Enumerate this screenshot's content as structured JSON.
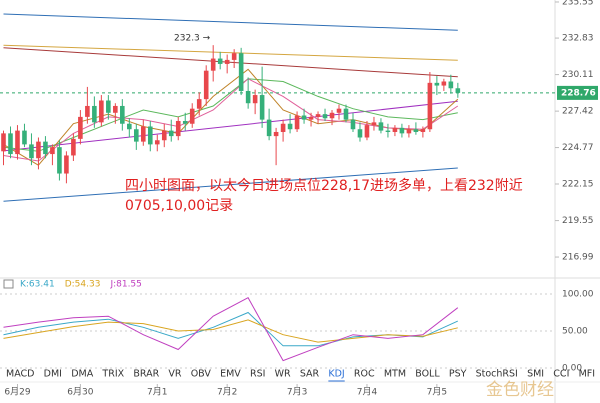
{
  "chart_data": [
    {
      "type": "candlestick",
      "log_scale": true,
      "xlim": [
        -0.5,
        78.9
      ],
      "ylim": [
        215.74,
        235.7
      ],
      "yticks": [
        235.55,
        232.83,
        230.11,
        227.42,
        224.77,
        222.15,
        219.55,
        216.99
      ],
      "xticks": [
        {
          "value": 2,
          "label": "6月29"
        },
        {
          "value": 11,
          "label": "6月30"
        },
        {
          "value": 22,
          "label": "7月1"
        },
        {
          "value": 32,
          "label": "7月2"
        },
        {
          "value": 42,
          "label": "7月3"
        },
        {
          "value": 52,
          "label": "7月4"
        },
        {
          "value": 62,
          "label": "7月5"
        }
      ],
      "up_color": "#e8474c",
      "down_color": "#35b07a",
      "open": [
        224.5,
        225.8,
        224.3,
        226,
        225,
        224,
        225.2,
        224.3,
        224.8,
        222.9,
        224.2,
        225.4,
        227,
        227.8,
        226.6,
        228.2,
        227.3,
        227.8,
        226.5,
        226.1,
        225.2,
        226.3,
        225,
        225.3,
        226,
        225.6,
        226.7,
        226.5,
        227.6,
        228.3,
        230.4,
        231.3,
        230.9,
        231.2,
        231.7,
        228.9,
        228,
        228.6,
        226.8,
        225.6,
        225.9,
        226.5,
        226.1,
        227.1,
        226.8,
        227,
        227.2,
        226.9,
        227.3,
        227.6,
        226.8,
        226.1,
        225.5,
        226.4,
        226.6,
        226,
        225.9,
        226.2,
        225.8,
        226.1,
        225.9,
        226.1,
        229.5,
        229.3,
        229.6,
        229.1
      ],
      "high": [
        226,
        226.3,
        226.4,
        226.5,
        225.8,
        225.5,
        225.6,
        225,
        225.3,
        224.5,
        225.8,
        227.5,
        229.2,
        228.5,
        228.6,
        228.6,
        228,
        228.3,
        226.9,
        226.5,
        226.8,
        226.7,
        225.7,
        226.5,
        226.8,
        227,
        227.3,
        228,
        228.8,
        230.8,
        232.3,
        231.8,
        231.6,
        232,
        232.1,
        229.9,
        229,
        230.7,
        227.6,
        226.2,
        226.8,
        227.2,
        227.4,
        227.6,
        227.3,
        227.4,
        227.6,
        227.5,
        227.9,
        227.9,
        227.3,
        226.6,
        226.7,
        227,
        226.9,
        226.5,
        226.4,
        226.5,
        226.4,
        226.6,
        226.3,
        230.3,
        230,
        229.8,
        230.1,
        229.5
      ],
      "low": [
        223.5,
        224,
        223.9,
        224.8,
        223.5,
        223.2,
        224,
        223.5,
        222.4,
        222.2,
        223.8,
        225,
        226.5,
        226.2,
        226.3,
        226.8,
        226.5,
        226,
        225.5,
        224.6,
        224.9,
        224.5,
        224.5,
        224.8,
        225.2,
        225.3,
        226,
        226.2,
        227.1,
        227.8,
        229.6,
        230.5,
        230.2,
        230.6,
        228.6,
        227.6,
        227.2,
        226.2,
        225.3,
        223.5,
        225.2,
        225.8,
        225.9,
        226.5,
        226.3,
        226.5,
        226.7,
        226.4,
        226.8,
        226.6,
        225.9,
        225.2,
        225.3,
        226,
        225.8,
        225.5,
        225.6,
        225.5,
        225.5,
        225.7,
        225.5,
        225.9,
        228.6,
        228.9,
        228.7,
        228.4
      ],
      "close": [
        225.8,
        224.3,
        226,
        225,
        224,
        225.2,
        224.3,
        224.8,
        222.9,
        224.2,
        225.4,
        227,
        227.8,
        226.6,
        228.2,
        227.3,
        227.8,
        226.5,
        226.1,
        225.2,
        226.3,
        225,
        225.3,
        226,
        225.6,
        226.7,
        226.5,
        227.6,
        228.3,
        230.4,
        231.3,
        230.9,
        231.2,
        231.7,
        228.9,
        228,
        228.6,
        226.8,
        225.6,
        225.9,
        226.5,
        226.1,
        227.1,
        226.8,
        227,
        227.2,
        226.9,
        227.3,
        227.6,
        226.8,
        226.1,
        225.5,
        226.4,
        226.6,
        226,
        225.9,
        226.2,
        225.8,
        226.1,
        225.9,
        226.1,
        229.5,
        229.3,
        229.6,
        229.1,
        228.76
      ],
      "lines": [
        {
          "color": "#2f6fb5",
          "x": [
            0,
            65
          ],
          "values": [
            234.64,
            233.41
          ]
        },
        {
          "color": "#d4a640",
          "x": [
            0,
            65
          ],
          "values": [
            232.3,
            231.17
          ]
        },
        {
          "color": "#a83a3a",
          "x": [
            0,
            65
          ],
          "values": [
            232.1,
            229.95
          ]
        },
        {
          "color": "#a030c0",
          "x": [
            0,
            65
          ],
          "values": [
            224.53,
            228.14
          ]
        },
        {
          "color": "#2f6fb5",
          "x": [
            0,
            65
          ],
          "values": [
            220.92,
            223.3
          ]
        },
        {
          "color": "#5cb85c",
          "x": [
            0,
            5,
            10,
            15,
            20,
            25,
            30,
            35,
            40,
            45,
            50,
            55,
            60,
            65
          ],
          "values": [
            224.8,
            224.5,
            225.5,
            226.5,
            227.5,
            227,
            227.8,
            229.8,
            229.6,
            228.5,
            227.6,
            227,
            226.8,
            227.3
          ]
        },
        {
          "color": "#c0842a",
          "x": [
            0,
            5,
            10,
            15,
            20,
            25,
            30,
            35,
            40,
            45,
            50,
            55,
            60,
            65
          ],
          "values": [
            225,
            223.5,
            226.5,
            227.2,
            226.3,
            225.8,
            228.5,
            230.5,
            227.5,
            226.5,
            226.8,
            226.2,
            226,
            228.3
          ]
        },
        {
          "color": "#e0609a",
          "x": [
            0,
            5,
            10,
            15,
            20,
            25,
            30,
            35,
            40,
            45,
            50,
            55,
            60,
            65
          ],
          "values": [
            224.2,
            223.8,
            225.8,
            227,
            226.8,
            226.3,
            227.5,
            229.8,
            228.5,
            226.8,
            226.6,
            226.2,
            226.1,
            227.8
          ]
        }
      ],
      "current_price": 228.76,
      "current_price_color": "#2fa86a",
      "high_label": "232.3 →",
      "annotation": [
        "四小时图面，以太今日进场点位228,17进场多单，上看232附近",
        "0705,10,00记录"
      ],
      "watermark": "金色财经"
    },
    {
      "type": "line",
      "ylim": [
        0,
        100
      ],
      "yticks": [
        {
          "value": 100,
          "label": "100.00"
        },
        {
          "value": 50,
          "label": "50.00"
        },
        {
          "value": 0,
          "label": "0.00"
        }
      ],
      "x": [
        0,
        5,
        10,
        15,
        20,
        25,
        30,
        35,
        40,
        45,
        50,
        55,
        60,
        65
      ],
      "series": [
        {
          "color": "#3aa8c8",
          "values": [
            45,
            55,
            62,
            66,
            55,
            40,
            55,
            75,
            30,
            30,
            42,
            45,
            42,
            63.41
          ]
        },
        {
          "color": "#d9a520",
          "values": [
            40,
            48,
            56,
            62,
            60,
            50,
            52,
            65,
            45,
            35,
            40,
            45,
            43,
            54.33
          ]
        },
        {
          "color": "#c040c0",
          "values": [
            55,
            62,
            68,
            70,
            45,
            25,
            70,
            95,
            10,
            28,
            45,
            40,
            45,
            81.55
          ]
        }
      ],
      "legend": [
        "K:63.41",
        "D:54.33",
        "J:81.55"
      ],
      "tabs": [
        "MACD",
        "DMI",
        "DMA",
        "TRIX",
        "BRAR",
        "VR",
        "OBV",
        "EMV",
        "RSI",
        "WR",
        "SAR",
        "KDJ",
        "ROC",
        "MTM",
        "BOLL",
        "PSY",
        "StochRSI",
        "SMI",
        "CCI",
        "MFI",
        "ATR"
      ],
      "active_tab": 11
    }
  ]
}
